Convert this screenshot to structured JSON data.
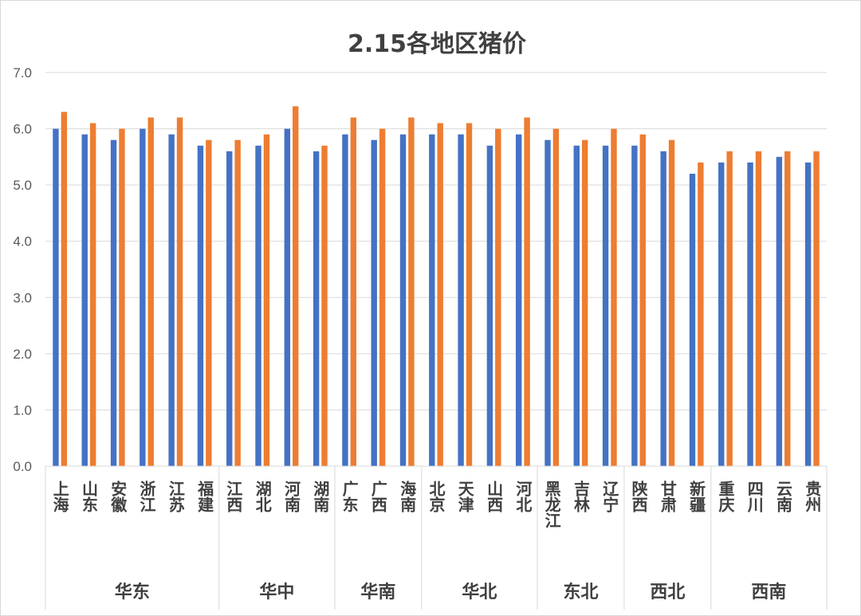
{
  "chart_data": {
    "type": "bar",
    "title": "2.15各地区猪价",
    "xlabel": "",
    "ylabel": "",
    "ylim": [
      0,
      7
    ],
    "yticks": [
      "0.0",
      "1.0",
      "2.0",
      "3.0",
      "4.0",
      "5.0",
      "6.0",
      "7.0"
    ],
    "grid": true,
    "legend": "none",
    "categories": [
      "上海",
      "山东",
      "安徽",
      "浙江",
      "江苏",
      "福建",
      "江西",
      "湖北",
      "河南",
      "湖南",
      "广东",
      "广西",
      "海南",
      "北京",
      "天津",
      "山西",
      "河北",
      "黑龙江",
      "吉林",
      "辽宁",
      "陕西",
      "甘肃",
      "新疆",
      "重庆",
      "四川",
      "云南",
      "贵州"
    ],
    "groups": [
      {
        "name": "华东",
        "count": 6
      },
      {
        "name": "华中",
        "count": 4
      },
      {
        "name": "华南",
        "count": 3
      },
      {
        "name": "华北",
        "count": 4
      },
      {
        "name": "东北",
        "count": 3
      },
      {
        "name": "西北",
        "count": 3
      },
      {
        "name": "西南",
        "count": 4
      }
    ],
    "series": [
      {
        "color": "#4472c4",
        "values": [
          6.0,
          5.9,
          5.8,
          6.0,
          5.9,
          5.7,
          5.6,
          5.7,
          6.0,
          5.6,
          5.9,
          5.8,
          5.9,
          5.9,
          5.9,
          5.7,
          5.9,
          5.8,
          5.7,
          5.7,
          5.7,
          5.6,
          5.2,
          5.4,
          5.4,
          5.5,
          5.4
        ]
      },
      {
        "color": "#ed7d31",
        "values": [
          6.3,
          6.1,
          6.0,
          6.2,
          6.2,
          5.8,
          5.8,
          5.9,
          6.4,
          5.7,
          6.2,
          6.0,
          6.2,
          6.1,
          6.1,
          6.0,
          6.2,
          6.0,
          5.8,
          6.0,
          5.9,
          5.8,
          5.4,
          5.6,
          5.6,
          5.6,
          5.6
        ]
      }
    ]
  }
}
